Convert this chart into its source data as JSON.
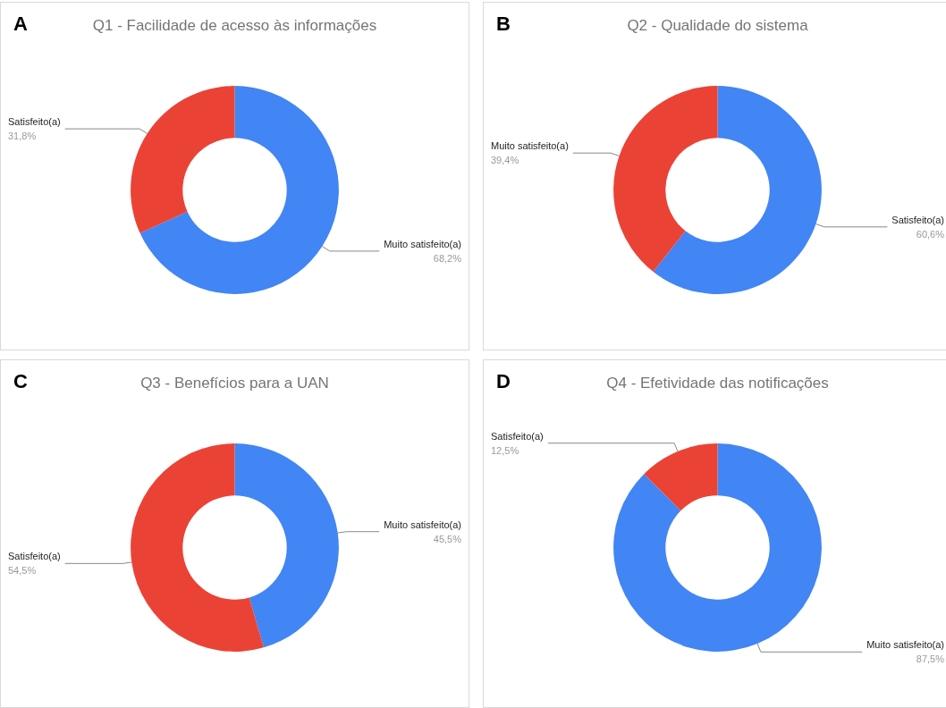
{
  "chart_data": [
    {
      "type": "donut",
      "title": "Q1 - Facilidade de acesso às informações",
      "annotations": [
        "A"
      ],
      "categories": [
        "Muito satisfeito(a)",
        "Satisfeito(a)"
      ],
      "values": [
        68.2,
        31.8
      ],
      "value_labels": [
        "68,2%",
        "31,8%"
      ],
      "colors": [
        "#4285f4",
        "#ea4335"
      ]
    },
    {
      "type": "donut",
      "title": "Q2 - Qualidade do sistema",
      "annotations": [
        "B"
      ],
      "categories": [
        "Satisfeito(a)",
        "Muito satisfeito(a)"
      ],
      "values": [
        60.6,
        39.4
      ],
      "value_labels": [
        "60,6%",
        "39,4%"
      ],
      "colors": [
        "#4285f4",
        "#ea4335"
      ]
    },
    {
      "type": "donut",
      "title": "Q3 - Benefícios para a UAN",
      "annotations": [
        "C"
      ],
      "categories": [
        "Muito satisfeito(a)",
        "Satisfeito(a)"
      ],
      "values": [
        45.5,
        54.5
      ],
      "value_labels": [
        "45,5%",
        "54,5%"
      ],
      "colors": [
        "#4285f4",
        "#ea4335"
      ]
    },
    {
      "type": "donut",
      "title": "Q4 - Efetividade das notificações",
      "annotations": [
        "D"
      ],
      "categories": [
        "Muito satisfeito(a)",
        "Satisfeito(a)"
      ],
      "values": [
        87.5,
        12.5
      ],
      "value_labels": [
        "87,5%",
        "12,5%"
      ],
      "colors": [
        "#4285f4",
        "#ea4335"
      ]
    }
  ]
}
